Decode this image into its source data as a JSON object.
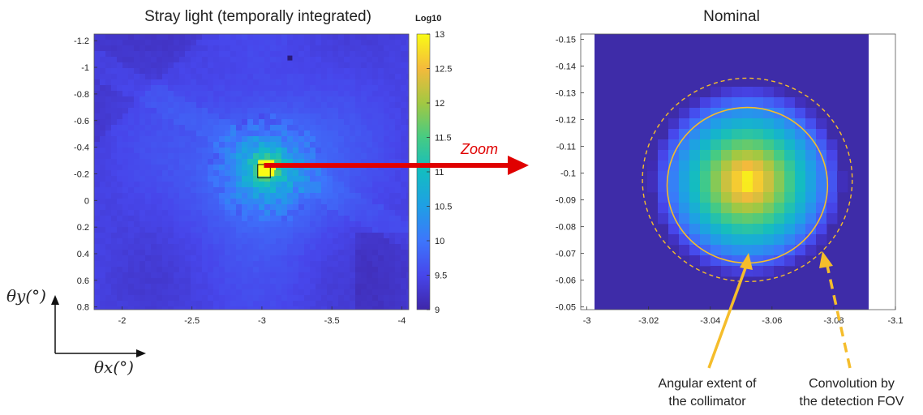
{
  "figure": {
    "zoom_label": "Zoom",
    "theta_x_label": "θx(°)",
    "theta_y_label": "θy(°)",
    "annotations": {
      "angular_line1": "Angular extent of",
      "angular_line2": "the collimator",
      "conv_line1": "Convolution by",
      "conv_line2": "the detection FOV"
    },
    "colors": {
      "arrow_red": "#e00000",
      "annotation_orange": "#f5bd2b"
    }
  },
  "chart_data": [
    {
      "type": "heatmap",
      "title": "Stray light (temporally integrated)",
      "xlim": [
        -1.8,
        -4.05
      ],
      "ylim": [
        -1.25,
        0.82
      ],
      "x_ticks": [
        -2,
        -2.5,
        -3,
        -3.5,
        -4
      ],
      "x_tick_labels": [
        "-2",
        "-2.5",
        "-3",
        "-3.5",
        "-4"
      ],
      "y_ticks": [
        -1.2,
        -1,
        -0.8,
        -0.6,
        -0.4,
        -0.2,
        0,
        0.2,
        0.4,
        0.6,
        0.8
      ],
      "y_tick_labels": [
        "-1.2",
        "-1",
        "-0.8",
        "-0.6",
        "-0.4",
        "-0.2",
        "0",
        "0.2",
        "0.4",
        "0.6",
        "0.8"
      ],
      "y_reversed": true,
      "colorbar": {
        "label": "Log10",
        "range": [
          9,
          13
        ],
        "ticks": [
          9,
          9.5,
          10,
          10.5,
          11,
          11.5,
          12,
          12.5,
          13
        ],
        "tick_labels": [
          "9",
          "9.5",
          "10",
          "10.5",
          "11",
          "11.5",
          "12",
          "12.5",
          "13"
        ],
        "colormap": "parula"
      },
      "background_level": 9.4,
      "peak": {
        "x": -3.03,
        "y": -0.23,
        "value": 13
      },
      "hotspot_note": "bright halo around peak decaying to ~10.2 near the edge of the halo",
      "zoom_box": {
        "x": [
          -2.97,
          -3.06
        ],
        "y": [
          -0.27,
          -0.17
        ]
      }
    },
    {
      "type": "heatmap",
      "title": "Nominal",
      "xlim": [
        -2.998,
        -3.1
      ],
      "ylim": [
        -0.152,
        -0.049
      ],
      "x_ticks": [
        -3,
        -3.02,
        -3.04,
        -3.06,
        -3.08,
        -3.1
      ],
      "x_tick_labels": [
        "-3",
        "-3.02",
        "-3.04",
        "-3.06",
        "-3.08",
        "-3.1"
      ],
      "y_ticks": [
        -0.15,
        -0.14,
        -0.13,
        -0.12,
        -0.11,
        -0.1,
        -0.09,
        -0.08,
        -0.07,
        -0.06,
        -0.05
      ],
      "y_tick_labels": [
        "-0.15",
        "-0.14",
        "-0.13",
        "-0.12",
        "-0.11",
        "-0.1",
        "-0.09",
        "-0.08",
        "-0.07",
        "-0.06",
        "-0.05"
      ],
      "y_reversed": true,
      "peak": {
        "x": -3.052,
        "y": -0.097
      },
      "circles": [
        {
          "name": "Angular extent of the collimator",
          "style": "solid",
          "center_x": -3.052,
          "center_y": -0.0955,
          "radius_x": 0.026
        },
        {
          "name": "Convolution by the detection FOV",
          "style": "dashed",
          "center_x": -3.052,
          "center_y": -0.0975,
          "radius_x": 0.034
        }
      ]
    }
  ]
}
